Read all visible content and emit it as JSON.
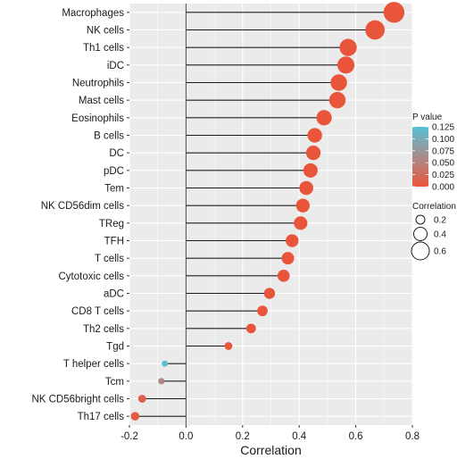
{
  "chart_data": {
    "type": "lollipop",
    "xlabel": "Correlation",
    "xlim": [
      -0.2,
      0.8
    ],
    "xticks": [
      -0.2,
      0.0,
      0.2,
      0.4,
      0.6,
      0.8
    ],
    "xtick_labels": [
      "-0.2",
      "0.0",
      "0.2",
      "0.4",
      "0.6",
      "0.8"
    ],
    "grid": true,
    "categories": [
      "Macrophages",
      "NK cells",
      "Th1 cells",
      "iDC",
      "Neutrophils",
      "Mast cells",
      "Eosinophils",
      "B cells",
      "DC",
      "pDC",
      "Tem",
      "NK CD56dim cells",
      "TReg",
      "TFH",
      "T cells",
      "Cytotoxic cells",
      "aDC",
      "CD8 T cells",
      "Th2 cells",
      "Tgd",
      "T helper cells",
      "Tcm",
      "NK CD56bright cells",
      "Th17 cells"
    ],
    "values": [
      0.735,
      0.668,
      0.573,
      0.565,
      0.54,
      0.535,
      0.488,
      0.455,
      0.45,
      0.44,
      0.425,
      0.413,
      0.405,
      0.375,
      0.36,
      0.345,
      0.295,
      0.27,
      0.23,
      0.15,
      -0.075,
      -0.087,
      -0.155,
      -0.18
    ],
    "p_values": [
      0.0,
      0.0,
      0.0,
      0.0,
      0.0,
      0.0,
      0.0,
      0.0,
      0.0,
      0.0,
      0.0,
      0.0,
      0.0,
      0.0,
      0.0,
      0.0,
      0.0,
      0.0,
      0.0,
      0.0,
      0.12,
      0.06,
      0.012,
      0.005
    ],
    "legend": {
      "p_value": {
        "title": "P value",
        "ticks": [
          0.125,
          0.1,
          0.075,
          0.05,
          0.025,
          0.0
        ],
        "tick_labels": [
          "0.125",
          "0.100",
          "0.075",
          "0.050",
          "0.025",
          "0.000"
        ],
        "color_low": "#e8553a",
        "color_high": "#56c1d6",
        "placement": "right"
      },
      "correlation": {
        "title": "Correlation",
        "sizes": [
          0.2,
          0.4,
          0.6
        ],
        "size_labels": [
          "0.2",
          "0.4",
          "0.6"
        ],
        "placement": "right"
      }
    },
    "colors": {
      "panel_bg": "#ebebeb",
      "grid_major": "#ffffff",
      "stem": "#1a1a1a",
      "zero_line": "#4d4d4d"
    }
  }
}
